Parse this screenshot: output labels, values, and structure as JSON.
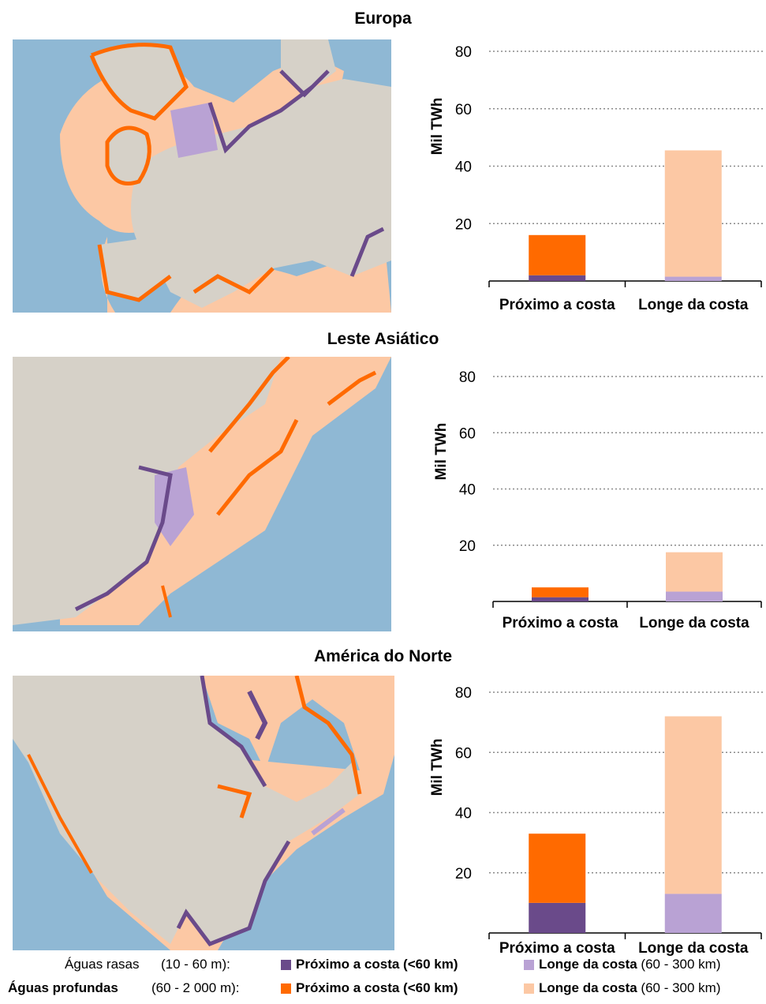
{
  "colors": {
    "shallow_near": "#6a4a8a",
    "shallow_far": "#b9a2d4",
    "deep_near": "#ff6a00",
    "deep_far": "#fcc8a4",
    "water": "#8fb8d4",
    "land": "#d6d1c8",
    "grid": "#8a8a8a"
  },
  "chart_data": [
    {
      "type": "bar",
      "stacked": true,
      "title": "Europa",
      "ylabel": "Mil TWh",
      "yticks": [
        20,
        40,
        60,
        80
      ],
      "ylim": [
        0,
        80
      ],
      "grid": true,
      "categories": [
        "Próximo a costa",
        "Longe da costa"
      ],
      "series": [
        {
          "role": "shallow",
          "values": [
            2,
            1.5
          ]
        },
        {
          "role": "deep",
          "values": [
            14,
            44
          ]
        }
      ]
    },
    {
      "type": "bar",
      "stacked": true,
      "title": "Leste Asiático",
      "ylabel": "Mil TWh",
      "yticks": [
        20,
        40,
        60,
        80
      ],
      "ylim": [
        0,
        80
      ],
      "grid": true,
      "categories": [
        "Próximo a costa",
        "Longe da costa"
      ],
      "series": [
        {
          "role": "shallow",
          "values": [
            1.5,
            3.5
          ]
        },
        {
          "role": "deep",
          "values": [
            3.5,
            14
          ]
        }
      ]
    },
    {
      "type": "bar",
      "stacked": true,
      "title": "América do Norte",
      "ylabel": "Mil TWh",
      "yticks": [
        20,
        40,
        60,
        80
      ],
      "ylim": [
        0,
        80
      ],
      "grid": true,
      "categories": [
        "Próximo a costa",
        "Longe da costa"
      ],
      "series": [
        {
          "role": "shallow",
          "values": [
            10,
            13
          ]
        },
        {
          "role": "deep",
          "values": [
            23,
            59
          ]
        }
      ]
    }
  ],
  "legend": {
    "shallow_label": "Águas rasas",
    "shallow_range": "(10 - 60 m):",
    "deep_label": "Águas profundas",
    "deep_range": "(60 - 2 000 m):",
    "near_label": "Próximo a costa (<60 km)",
    "far_label": "Longe da costa",
    "far_range": "(60 - 300 km)"
  }
}
